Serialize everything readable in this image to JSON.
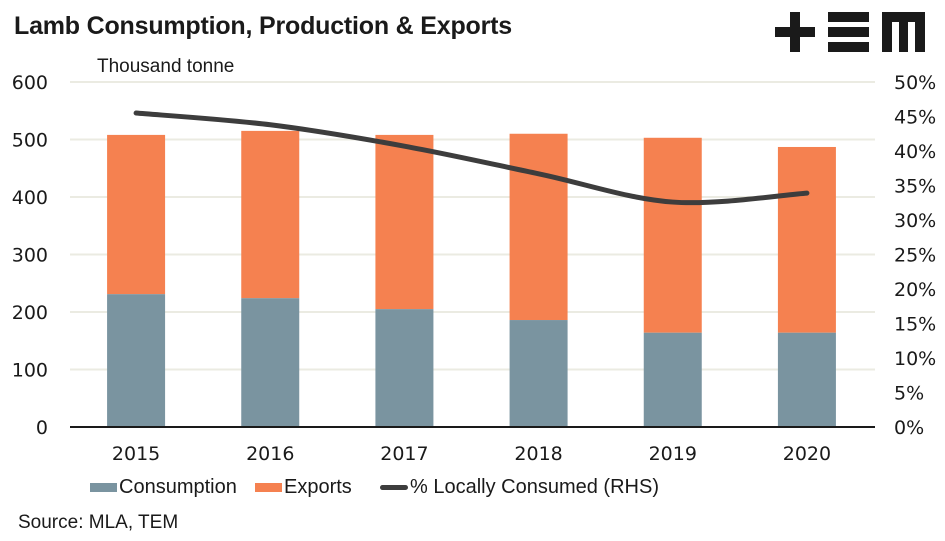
{
  "header": {
    "title": "Lamb Consumption, Production & Exports",
    "unit_label": "Thousand tonne",
    "logo": "+EM logo (TEM)"
  },
  "footer": {
    "source": "Source: MLA, TEM"
  },
  "colors": {
    "consumption": "#7a94a0",
    "exports": "#f58150",
    "line": "#3d3d3d",
    "grid": "#ebebe2",
    "axis": "#1a1a1a"
  },
  "chart_data": {
    "type": "bar",
    "subtype": "stacked bar with line on secondary axis",
    "title": "Lamb Consumption, Production & Exports",
    "ylabel": "Thousand tonne",
    "y2label": "% Locally Consumed (RHS)",
    "categories": [
      "2015",
      "2016",
      "2017",
      "2018",
      "2019",
      "2020"
    ],
    "series": [
      {
        "name": "Consumption",
        "type": "bar",
        "axis": "left",
        "values": [
          231,
          224,
          205,
          186,
          164,
          164
        ]
      },
      {
        "name": "Exports",
        "type": "bar",
        "axis": "left",
        "values": [
          277,
          291,
          303,
          324,
          339,
          323
        ]
      },
      {
        "name": "% Locally Consumed (RHS)",
        "type": "line",
        "axis": "right",
        "values": [
          45.5,
          43.8,
          40.7,
          36.7,
          32.6,
          33.9
        ]
      }
    ],
    "ylim": [
      0,
      600
    ],
    "yticks": [
      "0",
      "100",
      "200",
      "300",
      "400",
      "500",
      "600"
    ],
    "y2lim": [
      0,
      50
    ],
    "y2ticks": [
      "0%",
      "5%",
      "10%",
      "15%",
      "20%",
      "25%",
      "30%",
      "35%",
      "40%",
      "45%",
      "50%"
    ],
    "grid": true,
    "legend_position": "bottom"
  },
  "legend": {
    "items": [
      {
        "label": "Consumption"
      },
      {
        "label": "Exports"
      },
      {
        "label": "% Locally Consumed (RHS)"
      }
    ]
  }
}
